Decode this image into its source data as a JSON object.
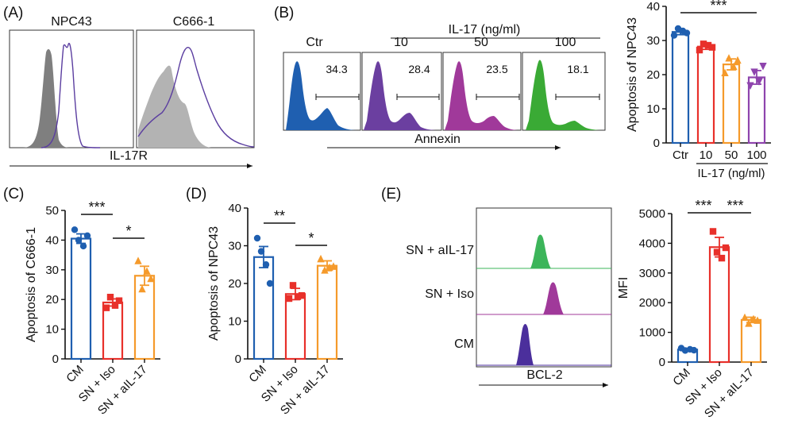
{
  "panels": {
    "A": {
      "letter": "(A)",
      "cell_lines": [
        "NPC43",
        "C666-1"
      ],
      "xlabel": "IL-17R",
      "colors": {
        "isotype_fill": "#7f7f7f",
        "isotype_fill_light": "#b3b3b3",
        "stain_line": "#5b3ea0"
      }
    },
    "B": {
      "letter": "(B)",
      "group_label": "IL-17 (ng/ml)",
      "histograms": [
        {
          "label": "Ctr",
          "value": "34.3",
          "color": "#1f5fb0"
        },
        {
          "label": "10",
          "value": "28.4",
          "color": "#6b3fa0"
        },
        {
          "label": "50",
          "value": "23.5",
          "color": "#a0399a"
        },
        {
          "label": "100",
          "value": "18.1",
          "color": "#3aaa35"
        }
      ],
      "xlabel": "Annexin"
    },
    "C": {
      "letter": "(C)"
    },
    "D": {
      "letter": "(D)"
    },
    "E": {
      "letter": "(E)",
      "histograms": [
        {
          "label": "SN + aIL-17",
          "color": "#3cb55a"
        },
        {
          "label": "SN + Iso",
          "color": "#a0399a"
        },
        {
          "label": "CM",
          "color": "#4b2f9c"
        }
      ],
      "xlabel": "BCL-2"
    }
  },
  "chart_data": [
    {
      "id": "B-bar",
      "type": "bar",
      "title": "",
      "categories": [
        "Ctr",
        "10",
        "50",
        "100"
      ],
      "values": [
        32.5,
        28.2,
        23.0,
        19.2
      ],
      "sem": [
        0.8,
        0.8,
        1.6,
        2.0
      ],
      "points": [
        [
          31.5,
          33.5,
          32.8,
          32.2
        ],
        [
          27.2,
          29.0,
          28.6,
          28.0
        ],
        [
          20.5,
          24.8,
          22.3,
          24.2
        ],
        [
          16.8,
          20.8,
          18.0,
          22.5
        ]
      ],
      "colors": [
        "#1f5fb0",
        "#e8302a",
        "#f59a2b",
        "#8e44ad"
      ],
      "markers": [
        "circle",
        "square",
        "triangle-up",
        "triangle-down"
      ],
      "xlabel": "IL-17 (ng/ml)",
      "ylabel": "Apoptosis of NPC43",
      "ylim": [
        0,
        40
      ],
      "yticks": [
        0,
        10,
        20,
        30,
        40
      ],
      "significance": [
        {
          "from": 0,
          "to": 3,
          "label": "***"
        }
      ]
    },
    {
      "id": "C",
      "type": "bar",
      "title": "",
      "categories": [
        "CM",
        "SN + Iso",
        "SN + aIL-17"
      ],
      "values": [
        40.5,
        19.0,
        28.0
      ],
      "sem": [
        1.6,
        1.2,
        3.2
      ],
      "points": [
        [
          43.5,
          40.0,
          38.0,
          41.5
        ],
        [
          17.2,
          20.8,
          18.0,
          19.6
        ],
        [
          33.0,
          23.5,
          29.5,
          27.0
        ]
      ],
      "colors": [
        "#1f5fb0",
        "#e8302a",
        "#f59a2b"
      ],
      "markers": [
        "circle",
        "square",
        "triangle-up"
      ],
      "xlabel": "",
      "ylabel": "Apoptosis of C666-1",
      "ylim": [
        0,
        50
      ],
      "yticks": [
        0,
        10,
        20,
        30,
        40,
        50
      ],
      "significance": [
        {
          "from": 0,
          "to": 1,
          "label": "***"
        },
        {
          "from": 1,
          "to": 2,
          "label": "*"
        }
      ]
    },
    {
      "id": "D",
      "type": "bar",
      "title": "",
      "categories": [
        "CM",
        "SN + Iso",
        "SN + aIL-17"
      ],
      "values": [
        27.0,
        17.2,
        24.7
      ],
      "sem": [
        2.8,
        1.5,
        1.3
      ],
      "points": [
        [
          32.0,
          28.5,
          25.0,
          20.0
        ],
        [
          16.0,
          19.5,
          16.5,
          16.8
        ],
        [
          26.5,
          23.5,
          24.2,
          24.5
        ]
      ],
      "colors": [
        "#1f5fb0",
        "#e8302a",
        "#f59a2b"
      ],
      "markers": [
        "circle",
        "square",
        "triangle-up"
      ],
      "xlabel": "",
      "ylabel": "Apoptosis of NPC43",
      "ylim": [
        0,
        40
      ],
      "yticks": [
        0,
        10,
        20,
        30,
        40
      ],
      "significance": [
        {
          "from": 0,
          "to": 1,
          "label": "**"
        },
        {
          "from": 1,
          "to": 2,
          "label": "*"
        }
      ]
    },
    {
      "id": "E-bar",
      "type": "bar",
      "title": "",
      "categories": [
        "CM",
        "SN + Iso",
        "SN + aIL-17"
      ],
      "values": [
        420,
        3870,
        1420
      ],
      "sem": [
        30,
        330,
        90
      ],
      "points": [
        [
          470,
          390,
          430,
          400
        ],
        [
          4400,
          3700,
          3500,
          3850
        ],
        [
          1500,
          1300,
          1450,
          1400
        ]
      ],
      "colors": [
        "#1f5fb0",
        "#e8302a",
        "#f59a2b"
      ],
      "markers": [
        "circle",
        "square",
        "triangle-up"
      ],
      "xlabel": "",
      "ylabel": "MFI",
      "ylim": [
        0,
        5000
      ],
      "yticks": [
        0,
        1000,
        2000,
        3000,
        4000,
        5000
      ],
      "significance": [
        {
          "from": 0,
          "to": 1,
          "label": "***"
        },
        {
          "from": 1,
          "to": 2,
          "label": "***"
        }
      ]
    }
  ]
}
